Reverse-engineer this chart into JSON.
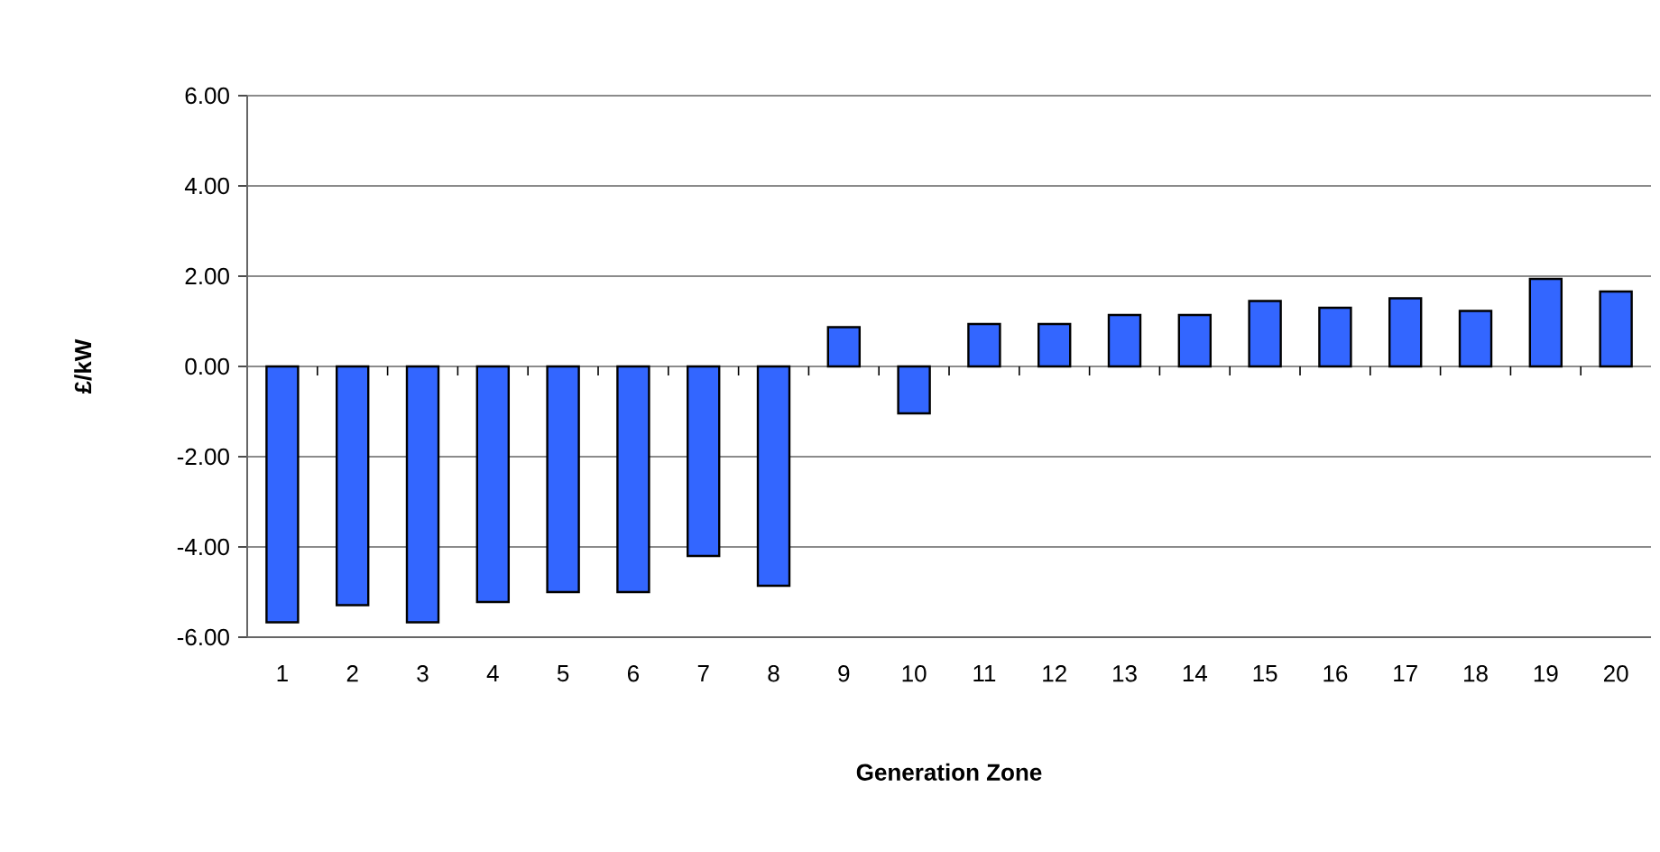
{
  "chart_data": {
    "type": "bar",
    "xlabel": "Generation Zone",
    "ylabel": "£/kW",
    "categories": [
      "1",
      "2",
      "3",
      "4",
      "5",
      "6",
      "7",
      "8",
      "9",
      "10",
      "11",
      "12",
      "13",
      "14",
      "15",
      "16",
      "17",
      "18",
      "19",
      "20"
    ],
    "values": [
      -5.67,
      -5.29,
      -5.67,
      -5.22,
      -5.0,
      -5.0,
      -4.2,
      -4.86,
      0.87,
      -1.04,
      0.94,
      0.94,
      1.14,
      1.14,
      1.45,
      1.3,
      1.51,
      1.23,
      1.94,
      1.66
    ],
    "color": "#3366ff",
    "ylim": [
      -6,
      6
    ],
    "yticks": [
      {
        "value": -6,
        "label": "-6.00"
      },
      {
        "value": -4,
        "label": "-4.00"
      },
      {
        "value": -2,
        "label": "-2.00"
      },
      {
        "value": 0,
        "label": "0.00"
      },
      {
        "value": 2,
        "label": "2.00"
      },
      {
        "value": 4,
        "label": "4.00"
      },
      {
        "value": 6,
        "label": "6.00"
      }
    ],
    "grid": "y"
  }
}
